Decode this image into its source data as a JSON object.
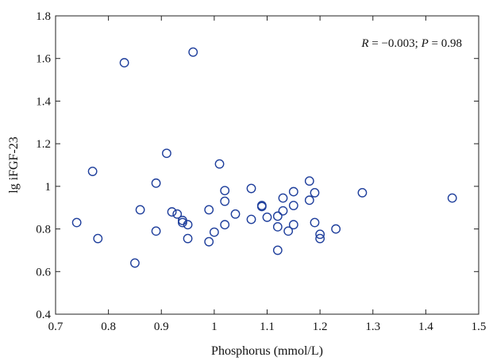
{
  "chart_data": {
    "type": "scatter",
    "xlabel": "Phosphorus (mmol/L)",
    "ylabel": "lg iFGF-23",
    "annotation": {
      "parts": [
        "R",
        " = −0.003; ",
        "P",
        " = 0.98"
      ]
    },
    "xlim": [
      0.7,
      1.5
    ],
    "ylim": [
      0.4,
      1.8
    ],
    "xticks": [
      0.7,
      0.8,
      0.9,
      1,
      1.1,
      1.2,
      1.3,
      1.4,
      1.5
    ],
    "xtick_labels": [
      "0.7",
      "0.8",
      "0.9",
      "1",
      "1.1",
      "1.2",
      "1.3",
      "1.4",
      "1.5"
    ],
    "yticks": [
      0.4,
      0.6,
      0.8,
      1,
      1.2,
      1.4,
      1.6,
      1.8
    ],
    "ytick_labels": [
      "0.4",
      "0.6",
      "0.8",
      "1",
      "1.2",
      "1.4",
      "1.6",
      "1.8"
    ],
    "grid": false,
    "marker_color": "#1f3f9c",
    "series": [
      {
        "points": [
          [
            0.74,
            0.83
          ],
          [
            0.77,
            1.07
          ],
          [
            0.78,
            0.755
          ],
          [
            0.83,
            1.58
          ],
          [
            0.85,
            0.64
          ],
          [
            0.86,
            0.89
          ],
          [
            0.89,
            1.015
          ],
          [
            0.89,
            0.79
          ],
          [
            0.91,
            1.155
          ],
          [
            0.92,
            0.88
          ],
          [
            0.93,
            0.87
          ],
          [
            0.94,
            0.84
          ],
          [
            0.94,
            0.83
          ],
          [
            0.95,
            0.82
          ],
          [
            0.95,
            0.755
          ],
          [
            0.96,
            1.63
          ],
          [
            0.99,
            0.89
          ],
          [
            0.99,
            0.74
          ],
          [
            1.0,
            0.785
          ],
          [
            1.01,
            1.105
          ],
          [
            1.02,
            0.98
          ],
          [
            1.02,
            0.93
          ],
          [
            1.02,
            0.82
          ],
          [
            1.04,
            0.87
          ],
          [
            1.07,
            0.99
          ],
          [
            1.07,
            0.845
          ],
          [
            1.09,
            0.91
          ],
          [
            1.09,
            0.905
          ],
          [
            1.1,
            0.855
          ],
          [
            1.12,
            0.86
          ],
          [
            1.12,
            0.81
          ],
          [
            1.12,
            0.7
          ],
          [
            1.13,
            0.945
          ],
          [
            1.13,
            0.885
          ],
          [
            1.14,
            0.79
          ],
          [
            1.15,
            0.975
          ],
          [
            1.15,
            0.91
          ],
          [
            1.15,
            0.82
          ],
          [
            1.18,
            1.025
          ],
          [
            1.18,
            0.935
          ],
          [
            1.19,
            0.97
          ],
          [
            1.19,
            0.83
          ],
          [
            1.2,
            0.775
          ],
          [
            1.2,
            0.755
          ],
          [
            1.23,
            0.8
          ],
          [
            1.28,
            0.97
          ],
          [
            1.45,
            0.945
          ]
        ]
      }
    ]
  }
}
